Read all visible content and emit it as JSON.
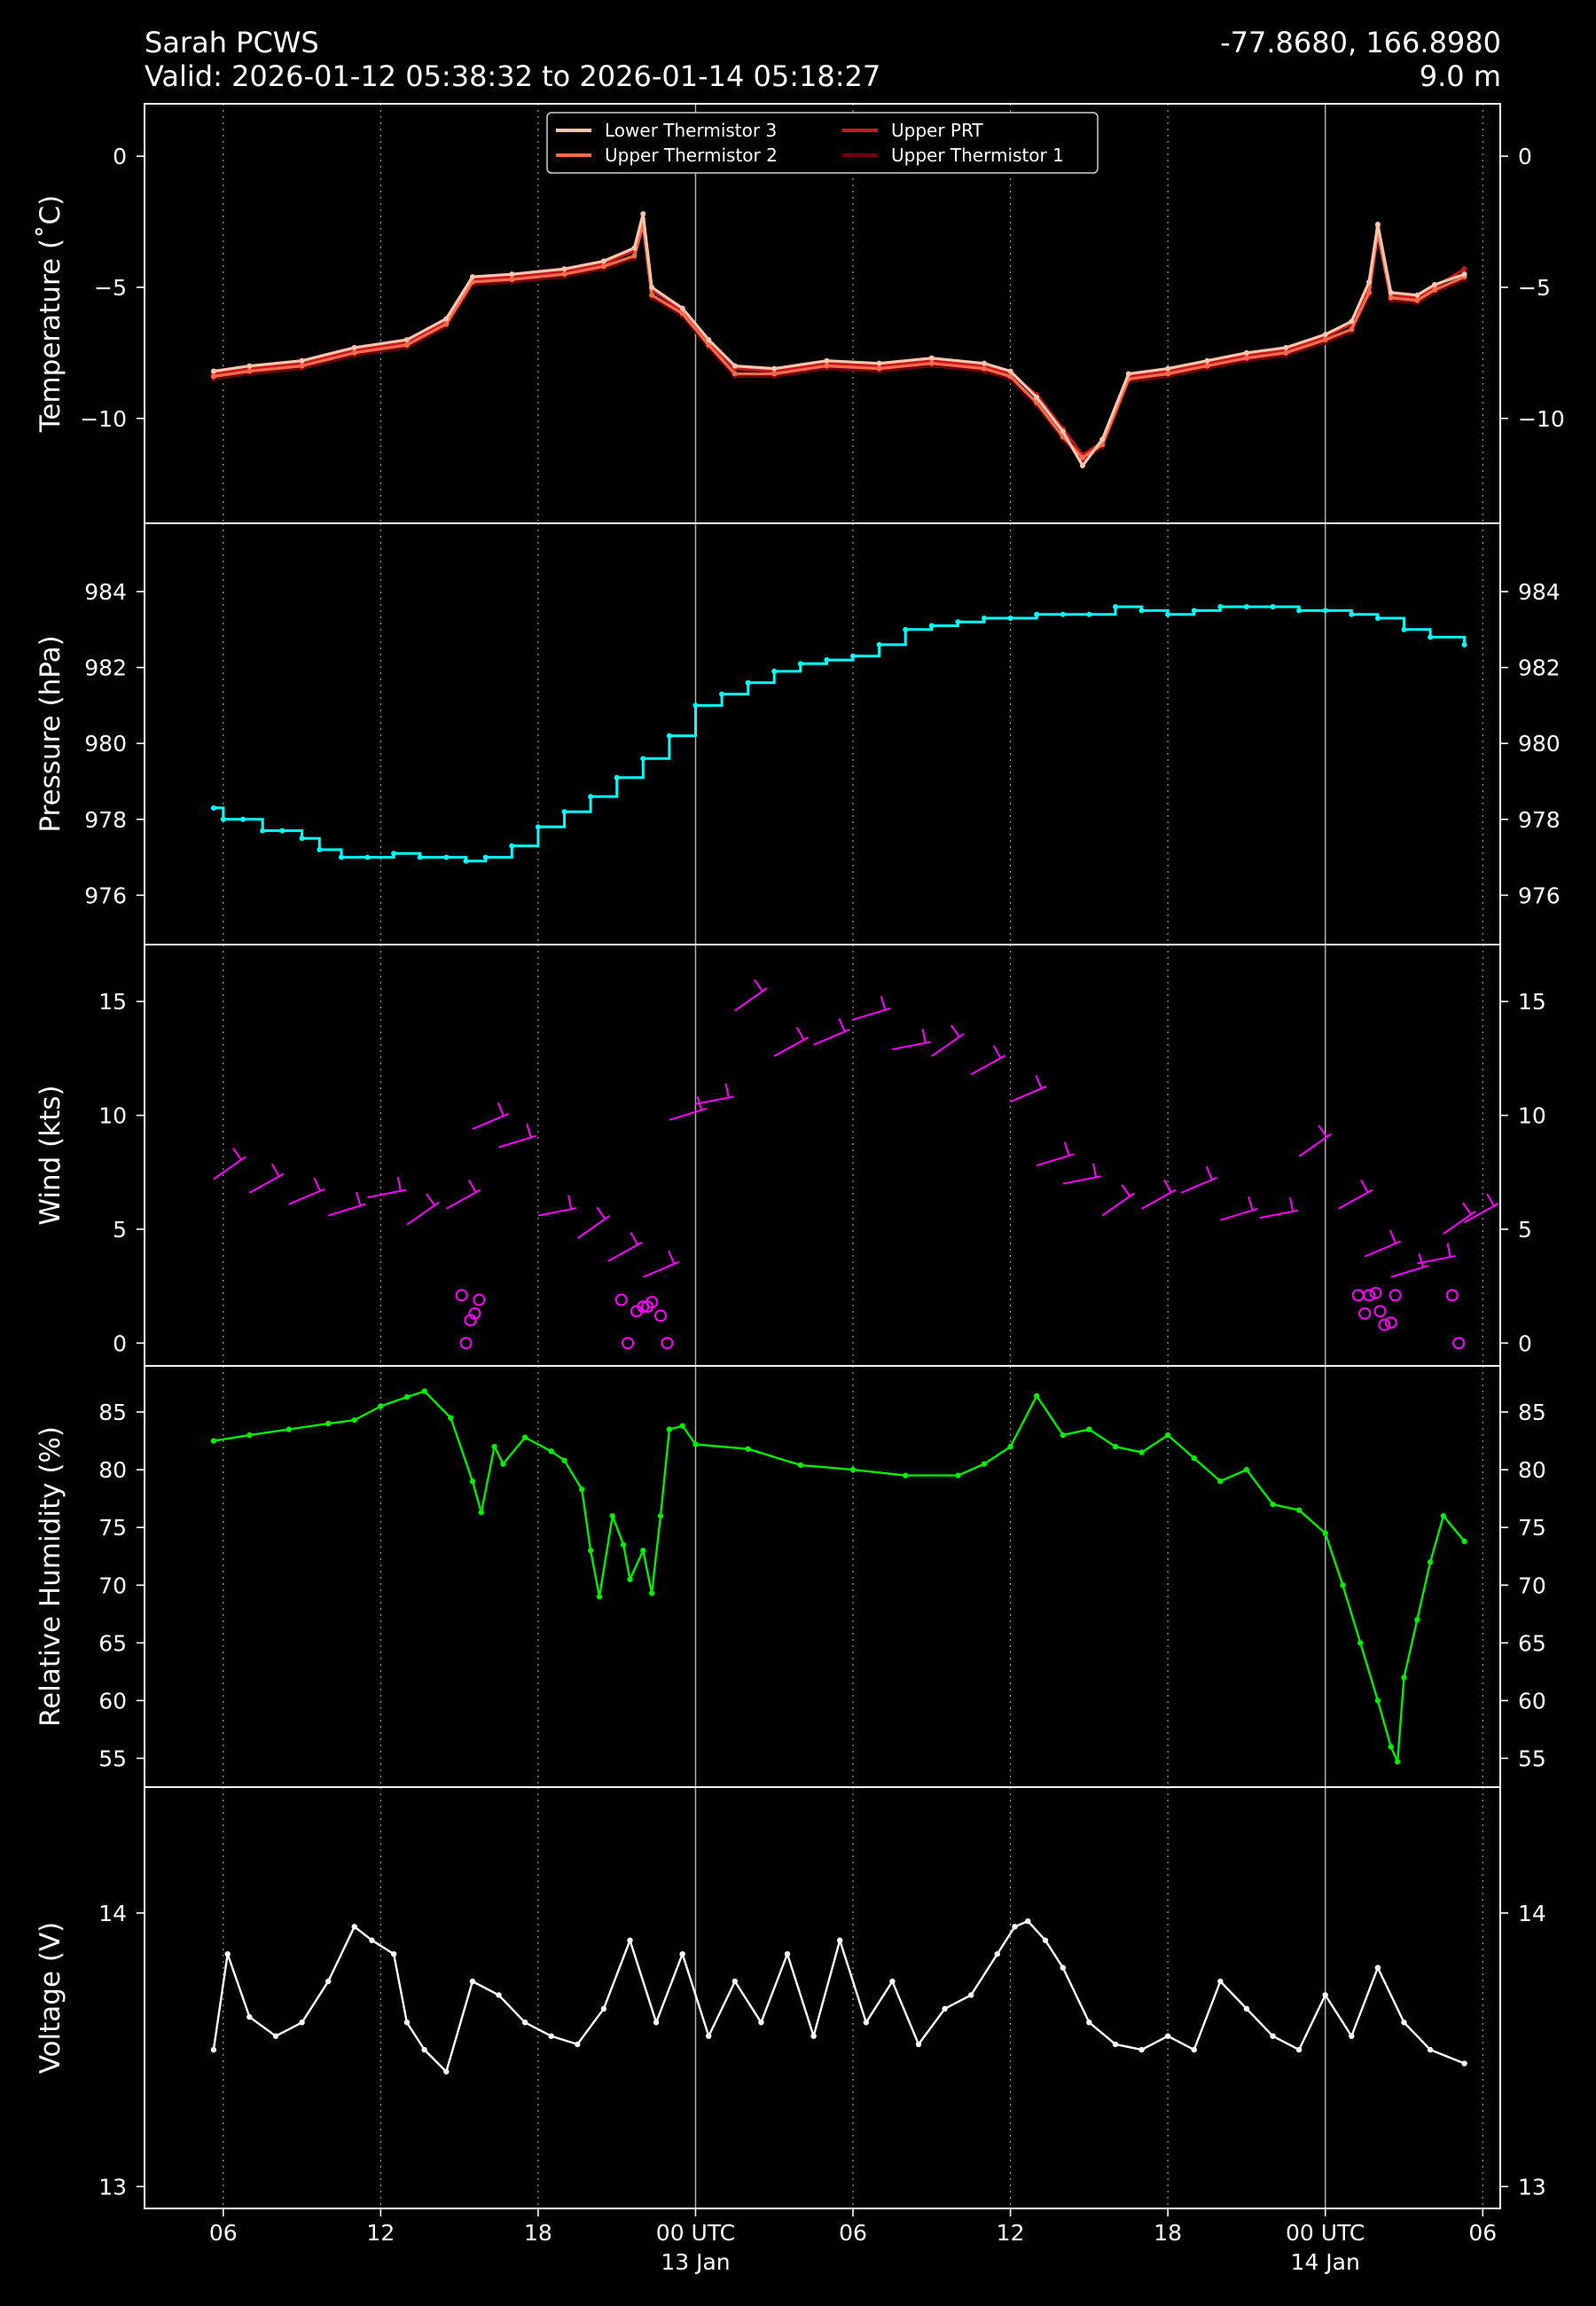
{
  "header": {
    "station": "Sarah PCWS",
    "valid": "Valid: 2026-01-12 05:38:32 to 2026-01-14 05:18:27",
    "coords": "-77.8680, 166.8980",
    "elevation": "9.0 m"
  },
  "x_axis": {
    "range": [
      "2026-01-12 03:00",
      "2026-01-14 06:40"
    ],
    "ticks": [
      {
        "time": "2026-01-12 06:00",
        "label": "06",
        "sub": ""
      },
      {
        "time": "2026-01-12 12:00",
        "label": "12",
        "sub": ""
      },
      {
        "time": "2026-01-12 18:00",
        "label": "18",
        "sub": ""
      },
      {
        "time": "2026-01-13 00:00",
        "label": "00 UTC",
        "sub": "13 Jan"
      },
      {
        "time": "2026-01-13 06:00",
        "label": "06",
        "sub": ""
      },
      {
        "time": "2026-01-13 12:00",
        "label": "12",
        "sub": ""
      },
      {
        "time": "2026-01-13 18:00",
        "label": "18",
        "sub": ""
      },
      {
        "time": "2026-01-14 00:00",
        "label": "00 UTC",
        "sub": "14 Jan"
      },
      {
        "time": "2026-01-14 06:00",
        "label": "06",
        "sub": ""
      }
    ]
  },
  "colors": {
    "background": "#000000",
    "lower_thermistor_3": "#fbc6ad",
    "upper_thermistor_2": "#f46b4c",
    "upper_prt": "#c8181e",
    "upper_thermistor_1": "#6b0010",
    "pressure": "#00ffff",
    "wind": "#ff00ff",
    "humidity": "#00ee00",
    "voltage": "#ffffff"
  },
  "chart_data": [
    {
      "type": "line",
      "panel": "temperature",
      "ylabel": "Temperature ($^\\circ$C)",
      "ylabel_text": "Temperature (˚C)",
      "ylim": [
        -14,
        2
      ],
      "yticks": [
        0,
        -5,
        -10
      ],
      "legend_position": "top-center",
      "x": [
        "2026-01-12 05:38",
        "2026-01-12 07:00",
        "2026-01-12 09:00",
        "2026-01-12 11:00",
        "2026-01-12 13:00",
        "2026-01-12 14:30",
        "2026-01-12 15:30",
        "2026-01-12 17:00",
        "2026-01-12 19:00",
        "2026-01-12 20:30",
        "2026-01-12 21:40",
        "2026-01-12 22:00",
        "2026-01-12 22:20",
        "2026-01-12 23:30",
        "2026-01-13 00:30",
        "2026-01-13 01:30",
        "2026-01-13 03:00",
        "2026-01-13 05:00",
        "2026-01-13 07:00",
        "2026-01-13 09:00",
        "2026-01-13 11:00",
        "2026-01-13 12:00",
        "2026-01-13 13:00",
        "2026-01-13 14:00",
        "2026-01-13 14:45",
        "2026-01-13 15:30",
        "2026-01-13 16:30",
        "2026-01-13 18:00",
        "2026-01-13 19:30",
        "2026-01-13 21:00",
        "2026-01-13 22:30",
        "2026-01-14 00:00",
        "2026-01-14 01:00",
        "2026-01-14 01:40",
        "2026-01-14 02:00",
        "2026-01-14 02:30",
        "2026-01-14 03:30",
        "2026-01-14 04:10",
        "2026-01-14 05:18"
      ],
      "series": [
        {
          "name": "Lower Thermistor 3",
          "values": [
            -8.2,
            -8.0,
            -7.8,
            -7.3,
            -7.0,
            -6.2,
            -4.6,
            -4.5,
            -4.3,
            -4.0,
            -3.5,
            -2.2,
            -5.0,
            -5.8,
            -7.0,
            -8.0,
            -8.1,
            -7.8,
            -7.9,
            -7.7,
            -7.9,
            -8.2,
            -9.2,
            -10.5,
            -11.8,
            -10.8,
            -8.3,
            -8.1,
            -7.8,
            -7.5,
            -7.3,
            -6.8,
            -6.3,
            -4.8,
            -2.6,
            -5.2,
            -5.3,
            -4.9,
            -4.5
          ]
        },
        {
          "name": "Upper Thermistor 2",
          "values": [
            -8.4,
            -8.2,
            -8.0,
            -7.5,
            -7.2,
            -6.4,
            -4.8,
            -4.7,
            -4.5,
            -4.2,
            -3.8,
            -2.6,
            -5.3,
            -6.0,
            -7.2,
            -8.3,
            -8.3,
            -8.0,
            -8.1,
            -7.9,
            -8.1,
            -8.4,
            -9.4,
            -10.7,
            -11.5,
            -11.0,
            -8.5,
            -8.3,
            -8.0,
            -7.7,
            -7.5,
            -7.0,
            -6.6,
            -5.2,
            -2.9,
            -5.4,
            -5.5,
            -5.1,
            -4.6
          ]
        },
        {
          "name": "Upper PRT",
          "values": [
            -8.3,
            -8.1,
            -7.9,
            -7.4,
            -7.1,
            -6.3,
            -4.7,
            -4.6,
            -4.4,
            -4.1,
            -3.6,
            -2.4,
            -5.1,
            -5.9,
            -7.1,
            -8.1,
            -8.2,
            -7.9,
            -8.0,
            -7.8,
            -8.0,
            -8.3,
            -9.1,
            -10.4,
            -11.4,
            -10.9,
            -8.4,
            -8.2,
            -7.9,
            -7.6,
            -7.4,
            -6.9,
            -6.4,
            -5.0,
            -2.7,
            -5.3,
            -5.4,
            -5.0,
            -4.3
          ]
        },
        {
          "name": "Upper Thermistor 1",
          "values": [
            -8.5,
            -8.3,
            -8.1,
            -7.6,
            -7.3,
            -6.5,
            -4.9,
            -4.8,
            -4.6,
            -4.3,
            -3.9,
            -2.7,
            -5.4,
            -6.1,
            -7.3,
            -8.4,
            -8.4,
            -8.1,
            -8.2,
            -8.0,
            -8.2,
            -8.5,
            -9.5,
            -10.8,
            -11.6,
            -11.1,
            -8.6,
            -8.4,
            -8.1,
            -7.8,
            -7.6,
            -7.1,
            -6.7,
            -5.3,
            -3.0,
            -5.5,
            -5.6,
            -5.2,
            -4.7
          ]
        }
      ]
    },
    {
      "type": "line",
      "panel": "pressure",
      "ylabel": "Pressure (hPa)",
      "ylim": [
        974.7,
        985.8
      ],
      "yticks": [
        976,
        978,
        980,
        982,
        984
      ],
      "x": [
        "2026-01-12 05:38",
        "2026-01-12 06:00",
        "2026-01-12 06:45",
        "2026-01-12 07:30",
        "2026-01-12 08:15",
        "2026-01-12 09:00",
        "2026-01-12 09:40",
        "2026-01-12 10:30",
        "2026-01-12 11:30",
        "2026-01-12 12:30",
        "2026-01-12 13:30",
        "2026-01-12 14:30",
        "2026-01-12 15:15",
        "2026-01-12 16:00",
        "2026-01-12 17:00",
        "2026-01-12 18:00",
        "2026-01-12 19:00",
        "2026-01-12 20:00",
        "2026-01-12 21:00",
        "2026-01-12 22:00",
        "2026-01-12 23:00",
        "2026-01-13 00:00",
        "2026-01-13 01:00",
        "2026-01-13 02:00",
        "2026-01-13 03:00",
        "2026-01-13 04:00",
        "2026-01-13 05:00",
        "2026-01-13 06:00",
        "2026-01-13 07:00",
        "2026-01-13 08:00",
        "2026-01-13 09:00",
        "2026-01-13 10:00",
        "2026-01-13 11:00",
        "2026-01-13 12:00",
        "2026-01-13 13:00",
        "2026-01-13 14:00",
        "2026-01-13 15:00",
        "2026-01-13 16:00",
        "2026-01-13 17:00",
        "2026-01-13 18:00",
        "2026-01-13 19:00",
        "2026-01-13 20:00",
        "2026-01-13 21:00",
        "2026-01-13 22:00",
        "2026-01-13 23:00",
        "2026-01-14 00:00",
        "2026-01-14 01:00",
        "2026-01-14 02:00",
        "2026-01-14 03:00",
        "2026-01-14 04:00",
        "2026-01-14 05:18"
      ],
      "values": [
        978.3,
        978.0,
        978.0,
        977.7,
        977.7,
        977.5,
        977.2,
        977.0,
        977.0,
        977.1,
        977.0,
        977.0,
        976.9,
        977.0,
        977.3,
        977.8,
        978.2,
        978.6,
        979.1,
        979.6,
        980.2,
        981.0,
        981.3,
        981.6,
        981.9,
        982.1,
        982.2,
        982.3,
        982.6,
        983.0,
        983.1,
        983.2,
        983.3,
        983.3,
        983.4,
        983.4,
        983.4,
        983.6,
        983.5,
        983.4,
        983.5,
        983.6,
        983.6,
        983.6,
        983.5,
        983.5,
        983.4,
        983.3,
        983.0,
        982.8,
        982.6
      ]
    },
    {
      "type": "scatter",
      "panel": "wind",
      "ylabel": "Wind (kts)",
      "ylim": [
        -1,
        17.5
      ],
      "yticks": [
        0,
        5,
        10,
        15
      ],
      "x": [
        "2026-01-12 05:38",
        "2026-01-12 07:00",
        "2026-01-12 08:30",
        "2026-01-12 10:00",
        "2026-01-12 11:30",
        "2026-01-12 13:00",
        "2026-01-12 14:30",
        "2026-01-12 15:30",
        "2026-01-12 16:30",
        "2026-01-12 18:00",
        "2026-01-12 19:30",
        "2026-01-12 20:40",
        "2026-01-12 22:00",
        "2026-01-12 23:00",
        "2026-01-13 00:00",
        "2026-01-13 01:30",
        "2026-01-13 03:00",
        "2026-01-13 04:30",
        "2026-01-13 06:00",
        "2026-01-13 07:30",
        "2026-01-13 09:00",
        "2026-01-13 10:30",
        "2026-01-13 12:00",
        "2026-01-13 13:00",
        "2026-01-13 14:00",
        "2026-01-13 15:30",
        "2026-01-13 17:00",
        "2026-01-13 18:30",
        "2026-01-13 20:00",
        "2026-01-13 21:30",
        "2026-01-13 23:00",
        "2026-01-14 00:30",
        "2026-01-14 01:30",
        "2026-01-14 02:30",
        "2026-01-14 03:30",
        "2026-01-14 04:30",
        "2026-01-14 05:18"
      ],
      "values": [
        7.2,
        6.6,
        6.1,
        5.6,
        6.4,
        5.2,
        5.9,
        9.4,
        8.6,
        5.6,
        4.6,
        3.6,
        2.9,
        9.8,
        10.5,
        14.6,
        12.6,
        13.1,
        14.2,
        12.9,
        12.6,
        11.8,
        10.6,
        7.8,
        7.0,
        5.6,
        5.9,
        6.6,
        5.4,
        5.5,
        8.2,
        5.9,
        3.8,
        2.9,
        3.5,
        4.8,
        5.3
      ],
      "calm": {
        "x": [
          "2026-01-12 15:05",
          "2026-01-12 15:15",
          "2026-01-12 15:25",
          "2026-01-12 15:35",
          "2026-01-12 15:45",
          "2026-01-12 21:10",
          "2026-01-12 21:25",
          "2026-01-12 21:45",
          "2026-01-12 22:00",
          "2026-01-12 22:10",
          "2026-01-12 22:20",
          "2026-01-12 22:40",
          "2026-01-12 22:55",
          "2026-01-14 01:15",
          "2026-01-14 01:30",
          "2026-01-14 01:40",
          "2026-01-14 01:55",
          "2026-01-14 02:05",
          "2026-01-14 02:15",
          "2026-01-14 02:30",
          "2026-01-14 02:40",
          "2026-01-14 04:50",
          "2026-01-14 05:05"
        ],
        "values": [
          2.1,
          0.0,
          1.0,
          1.3,
          1.9,
          1.9,
          0.0,
          1.4,
          1.6,
          1.6,
          1.8,
          1.2,
          0.0,
          2.1,
          1.3,
          2.1,
          2.2,
          1.4,
          0.8,
          0.9,
          2.1,
          2.1,
          0.0
        ]
      }
    },
    {
      "type": "line",
      "panel": "humidity",
      "ylabel": "Relative Humidity (%)",
      "ylim": [
        52.5,
        89
      ],
      "yticks": [
        55,
        60,
        65,
        70,
        75,
        80,
        85
      ],
      "x": [
        "2026-01-12 05:38",
        "2026-01-12 07:00",
        "2026-01-12 08:30",
        "2026-01-12 10:00",
        "2026-01-12 11:00",
        "2026-01-12 12:00",
        "2026-01-12 13:00",
        "2026-01-12 13:40",
        "2026-01-12 14:40",
        "2026-01-12 15:30",
        "2026-01-12 15:50",
        "2026-01-12 16:20",
        "2026-01-12 16:40",
        "2026-01-12 17:30",
        "2026-01-12 18:30",
        "2026-01-12 19:00",
        "2026-01-12 19:40",
        "2026-01-12 20:00",
        "2026-01-12 20:20",
        "2026-01-12 20:50",
        "2026-01-12 21:15",
        "2026-01-12 21:30",
        "2026-01-12 22:00",
        "2026-01-12 22:20",
        "2026-01-12 22:40",
        "2026-01-12 23:00",
        "2026-01-12 23:30",
        "2026-01-13 00:00",
        "2026-01-13 02:00",
        "2026-01-13 04:00",
        "2026-01-13 06:00",
        "2026-01-13 08:00",
        "2026-01-13 10:00",
        "2026-01-13 11:00",
        "2026-01-13 12:00",
        "2026-01-13 13:00",
        "2026-01-13 14:00",
        "2026-01-13 15:00",
        "2026-01-13 16:00",
        "2026-01-13 17:00",
        "2026-01-13 18:00",
        "2026-01-13 19:00",
        "2026-01-13 20:00",
        "2026-01-13 21:00",
        "2026-01-13 22:00",
        "2026-01-13 23:00",
        "2026-01-14 00:00",
        "2026-01-14 00:40",
        "2026-01-14 01:20",
        "2026-01-14 02:00",
        "2026-01-14 02:30",
        "2026-01-14 02:45",
        "2026-01-14 03:00",
        "2026-01-14 03:30",
        "2026-01-14 04:00",
        "2026-01-14 04:30",
        "2026-01-14 05:18"
      ],
      "values": [
        82.5,
        83.0,
        83.5,
        84.0,
        84.3,
        85.5,
        86.3,
        86.8,
        84.5,
        79.0,
        76.3,
        82.0,
        80.5,
        82.8,
        81.6,
        80.8,
        78.3,
        73.0,
        69.0,
        76.0,
        73.5,
        70.5,
        73.0,
        69.3,
        76.0,
        83.5,
        83.8,
        82.2,
        81.8,
        80.4,
        80.0,
        79.5,
        79.5,
        80.5,
        82.0,
        86.4,
        83.0,
        83.5,
        82.0,
        81.5,
        83.0,
        81.0,
        79.0,
        80.0,
        77.0,
        76.5,
        74.5,
        70.0,
        65.0,
        60.0,
        56.0,
        54.7,
        62.0,
        67.0,
        72.0,
        76.0,
        73.8
      ]
    },
    {
      "type": "line",
      "panel": "voltage",
      "ylabel": "Voltage (V)",
      "ylim": [
        12.92,
        14.46
      ],
      "yticks": [
        13,
        14
      ],
      "x": [
        "2026-01-12 05:38",
        "2026-01-12 06:10",
        "2026-01-12 07:00",
        "2026-01-12 08:00",
        "2026-01-12 09:00",
        "2026-01-12 10:00",
        "2026-01-12 11:00",
        "2026-01-12 11:40",
        "2026-01-12 12:30",
        "2026-01-12 13:00",
        "2026-01-12 13:40",
        "2026-01-12 14:30",
        "2026-01-12 15:30",
        "2026-01-12 16:30",
        "2026-01-12 17:30",
        "2026-01-12 18:30",
        "2026-01-12 19:30",
        "2026-01-12 20:30",
        "2026-01-12 21:30",
        "2026-01-12 22:30",
        "2026-01-12 23:30",
        "2026-01-13 00:30",
        "2026-01-13 01:30",
        "2026-01-13 02:30",
        "2026-01-13 03:30",
        "2026-01-13 04:30",
        "2026-01-13 05:30",
        "2026-01-13 06:30",
        "2026-01-13 07:30",
        "2026-01-13 08:30",
        "2026-01-13 09:30",
        "2026-01-13 10:30",
        "2026-01-13 11:30",
        "2026-01-13 12:10",
        "2026-01-13 12:40",
        "2026-01-13 13:20",
        "2026-01-13 14:00",
        "2026-01-13 15:00",
        "2026-01-13 16:00",
        "2026-01-13 17:00",
        "2026-01-13 18:00",
        "2026-01-13 19:00",
        "2026-01-13 20:00",
        "2026-01-13 21:00",
        "2026-01-13 22:00",
        "2026-01-13 23:00",
        "2026-01-14 00:00",
        "2026-01-14 01:00",
        "2026-01-14 02:00",
        "2026-01-14 03:00",
        "2026-01-14 04:00",
        "2026-01-14 05:18"
      ],
      "values": [
        13.5,
        13.85,
        13.62,
        13.55,
        13.6,
        13.75,
        13.95,
        13.9,
        13.85,
        13.6,
        13.5,
        13.42,
        13.75,
        13.7,
        13.6,
        13.55,
        13.52,
        13.65,
        13.9,
        13.6,
        13.85,
        13.55,
        13.75,
        13.6,
        13.85,
        13.55,
        13.9,
        13.6,
        13.75,
        13.52,
        13.65,
        13.7,
        13.85,
        13.95,
        13.97,
        13.9,
        13.8,
        13.6,
        13.52,
        13.5,
        13.55,
        13.5,
        13.75,
        13.65,
        13.55,
        13.5,
        13.7,
        13.55,
        13.8,
        13.6,
        13.5,
        13.45
      ]
    }
  ]
}
